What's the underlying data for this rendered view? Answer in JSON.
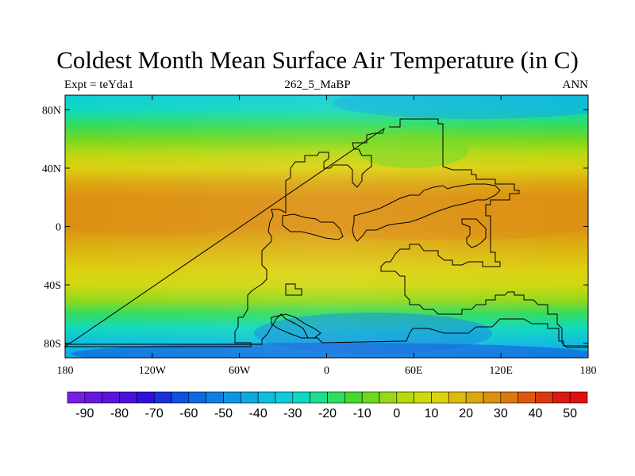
{
  "title": "Coldest Month Mean Surface Air Temperature (in C)",
  "subtitle_left": "Expt = teYda1",
  "subtitle_center": "262_5_MaBP",
  "subtitle_right": "ANN",
  "chart_data": {
    "type": "heatmap",
    "projection": "cylindrical-equidistant",
    "x_ticks": [
      "180",
      "120W",
      "60W",
      "0",
      "60E",
      "120E",
      "180"
    ],
    "y_ticks": [
      "80N",
      "40N",
      "0",
      "40S",
      "80S"
    ],
    "x_range": [
      -180,
      180
    ],
    "y_range": [
      -90,
      90
    ],
    "field": "coldest month mean surface air temperature",
    "colorbar": {
      "levels": [
        -90,
        -85,
        -80,
        -75,
        -70,
        -65,
        -60,
        -55,
        -50,
        -45,
        -40,
        -35,
        -30,
        -25,
        -20,
        -15,
        -10,
        -5,
        0,
        5,
        10,
        15,
        20,
        25,
        30,
        35,
        40,
        45,
        50
      ],
      "labels": [
        "-90",
        "-80",
        "-70",
        "-60",
        "-50",
        "-40",
        "-30",
        "-20",
        "-10",
        "0",
        "10",
        "20",
        "30",
        "40",
        "50"
      ],
      "colors": [
        "#7a1ee6",
        "#6a18e0",
        "#5a14da",
        "#4a10d6",
        "#3010d8",
        "#1a30d8",
        "#1050e0",
        "#1068e0",
        "#1080e0",
        "#1094e0",
        "#10a8e0",
        "#10bce0",
        "#10ccd8",
        "#10d8c0",
        "#20dc90",
        "#30dc60",
        "#48d830",
        "#70d820",
        "#98d818",
        "#b8d810",
        "#d0d810",
        "#dcd010",
        "#dcbc10",
        "#dca810",
        "#dc9010",
        "#dc7810",
        "#dc5810",
        "#dc3810",
        "#dc1a10",
        "#e01010"
      ]
    },
    "zonal_profile": [
      {
        "lat": 90,
        "t": -32
      },
      {
        "lat": 80,
        "t": -28
      },
      {
        "lat": 70,
        "t": -18
      },
      {
        "lat": 60,
        "t": -8
      },
      {
        "lat": 50,
        "t": 2
      },
      {
        "lat": 40,
        "t": 12
      },
      {
        "lat": 30,
        "t": 20
      },
      {
        "lat": 20,
        "t": 25
      },
      {
        "lat": 10,
        "t": 29
      },
      {
        "lat": 0,
        "t": 27
      },
      {
        "lat": -10,
        "t": 24
      },
      {
        "lat": -20,
        "t": 19
      },
      {
        "lat": -30,
        "t": 13
      },
      {
        "lat": -40,
        "t": 5
      },
      {
        "lat": -50,
        "t": -5
      },
      {
        "lat": -60,
        "t": -18
      },
      {
        "lat": -70,
        "t": -30
      },
      {
        "lat": -80,
        "t": -40
      },
      {
        "lat": -90,
        "t": -45
      }
    ]
  }
}
